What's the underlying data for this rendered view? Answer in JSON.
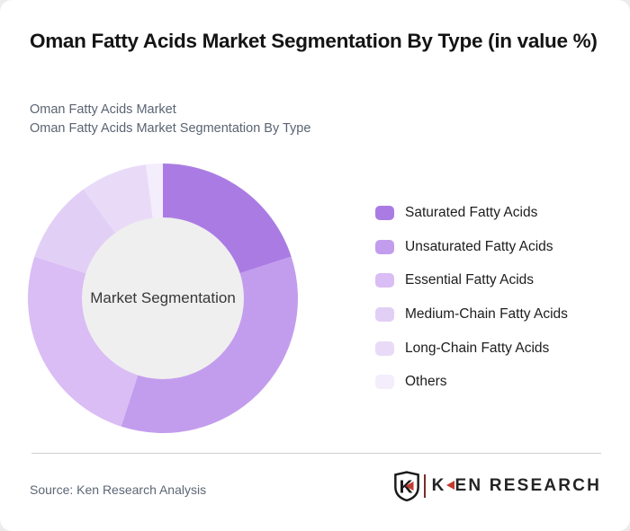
{
  "page": {
    "title": "Oman Fatty Acids Market Segmentation By Type (in value %)",
    "subtitle_line1": "Oman Fatty Acids Market",
    "subtitle_line2": "Oman Fatty Acids Market Segmentation By Type"
  },
  "chart_data": {
    "type": "pie",
    "subtype": "donut",
    "title": "Oman Fatty Acids Market Segmentation By Type (in value %)",
    "center_label": "Market Segmentation",
    "unit": "value %",
    "categories": [
      "Saturated Fatty Acids",
      "Unsaturated Fatty Acids",
      "Essential Fatty Acids",
      "Medium-Chain Fatty Acids",
      "Long-Chain Fatty Acids",
      "Others"
    ],
    "values": [
      20,
      35,
      25,
      10,
      8,
      2
    ],
    "colors": [
      "#aa7ce3",
      "#c39ded",
      "#d9bdf4",
      "#e2cff6",
      "#e9dbf8",
      "#f4edfc"
    ],
    "start_angle_deg": 0,
    "direction": "clockwise",
    "legend_position": "right",
    "center_fill": "#efefef",
    "grid": false
  },
  "footer": {
    "source": "Source: Ken Research Analysis",
    "logo": {
      "shield_letter": "K",
      "brand_prefix": "K",
      "brand_suffix": "EN RESEARCH",
      "accent_red": "#c23b2e"
    }
  }
}
